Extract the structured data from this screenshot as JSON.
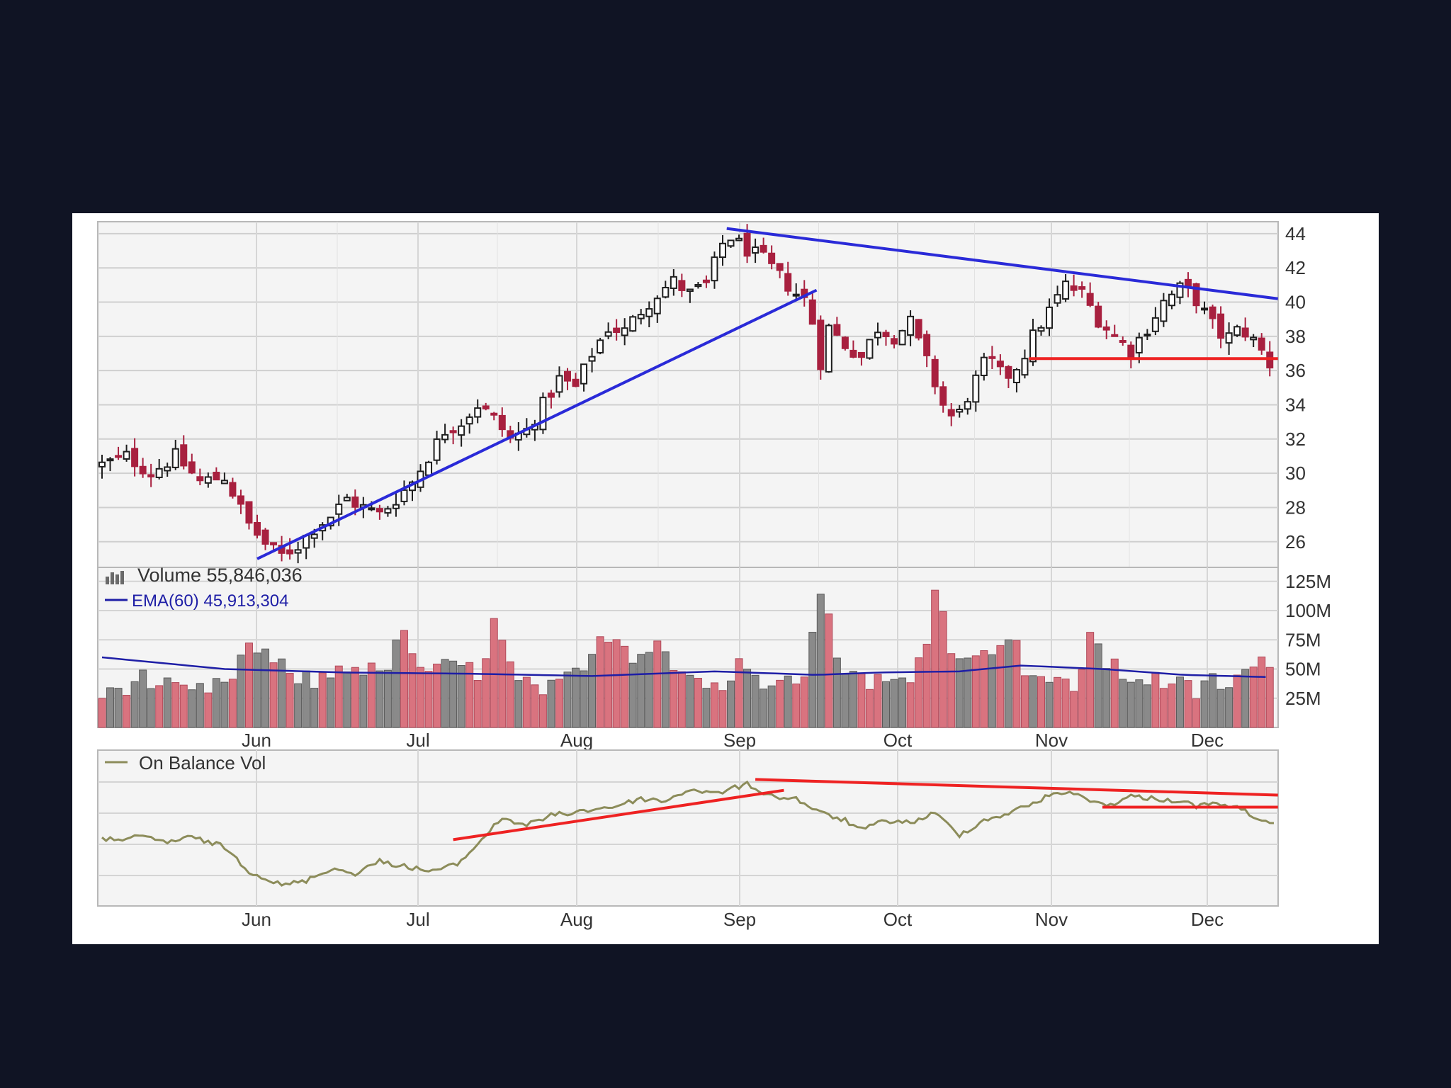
{
  "chart_data": [
    {
      "type": "candlestick",
      "title": "",
      "months": [
        "Jun",
        "Jul",
        "Aug",
        "Sep",
        "Oct",
        "Nov",
        "Dec"
      ],
      "ytick_labels": [
        "44",
        "42",
        "40",
        "38",
        "36",
        "34",
        "32",
        "30",
        "28",
        "26"
      ],
      "ylim": [
        24.5,
        44.7
      ],
      "y_axis_position": "right",
      "grid": true,
      "candle_colors": {
        "up": "#1e1e1e",
        "down": "#a8203f"
      },
      "close_path": [
        [
          0,
          30.5
        ],
        [
          6,
          31.0
        ],
        [
          12,
          30.0
        ],
        [
          18,
          31.0
        ],
        [
          24,
          29.5
        ],
        [
          30,
          29.8
        ],
        [
          36,
          27.0
        ],
        [
          41,
          25.6
        ],
        [
          44,
          25.2
        ],
        [
          48,
          25.8
        ],
        [
          52,
          26.8
        ],
        [
          56,
          27.5
        ],
        [
          60,
          28.5
        ],
        [
          64,
          28.0
        ],
        [
          68,
          27.6
        ],
        [
          72,
          28.5
        ],
        [
          76,
          29.5
        ],
        [
          80,
          31.0
        ],
        [
          84,
          32.5
        ],
        [
          88,
          33.0
        ],
        [
          92,
          34.0
        ],
        [
          96,
          33.2
        ],
        [
          100,
          32.0
        ],
        [
          104,
          32.5
        ],
        [
          108,
          34.0
        ],
        [
          112,
          35.5
        ],
        [
          116,
          35.0
        ],
        [
          120,
          37.0
        ],
        [
          124,
          38.5
        ],
        [
          128,
          38.3
        ],
        [
          132,
          39.5
        ],
        [
          136,
          40.5
        ],
        [
          140,
          41.2
        ],
        [
          144,
          40.5
        ],
        [
          148,
          41.0
        ],
        [
          153,
          44.0
        ],
        [
          157,
          43.2
        ],
        [
          162,
          42.5
        ],
        [
          166,
          41.5
        ],
        [
          170,
          40.5
        ],
        [
          173,
          40.0
        ],
        [
          176,
          36.5
        ],
        [
          178,
          38.5
        ],
        [
          182,
          37.5
        ],
        [
          186,
          36.8
        ],
        [
          190,
          38.5
        ],
        [
          194,
          38.0
        ],
        [
          198,
          38.8
        ],
        [
          202,
          36.5
        ],
        [
          206,
          34.0
        ],
        [
          209,
          33.0
        ],
        [
          213,
          35.0
        ],
        [
          217,
          36.8
        ],
        [
          221,
          35.5
        ],
        [
          225,
          36.5
        ],
        [
          228,
          38.0
        ],
        [
          232,
          39.5
        ],
        [
          236,
          41.0
        ],
        [
          240,
          40.5
        ],
        [
          244,
          39.0
        ],
        [
          248,
          38.0
        ],
        [
          252,
          37.2
        ],
        [
          256,
          38.5
        ],
        [
          260,
          40.0
        ],
        [
          264,
          40.8
        ],
        [
          267,
          40.5
        ],
        [
          271,
          39.0
        ],
        [
          275,
          37.8
        ],
        [
          279,
          38.5
        ],
        [
          283,
          37.5
        ],
        [
          287,
          36.0
        ]
      ],
      "annotations": [
        {
          "color": "#2a2ad8",
          "from": [
            38,
            25.0
          ],
          "to": [
            175,
            40.7
          ]
        },
        {
          "color": "#2a2ad8",
          "from": [
            153,
            44.3
          ],
          "to": [
            288,
            40.2
          ]
        },
        {
          "color": "#ee2222",
          "from": [
            227,
            36.7
          ],
          "to": [
            288,
            36.7
          ]
        }
      ]
    },
    {
      "type": "bar",
      "legend": {
        "volume": "Volume 55,846,036",
        "ema": "EMA(60) 45,913,304"
      },
      "ytick_labels": [
        "125M",
        "100M",
        "75M",
        "50M",
        "25M"
      ],
      "ylim": [
        0,
        137
      ],
      "bar_colors": {
        "up": "#8a8a8a",
        "down": "#d9737f"
      },
      "ema_color": "#1e1ea6",
      "volume_path": [
        [
          0,
          28
        ],
        [
          10,
          42
        ],
        [
          20,
          28
        ],
        [
          30,
          35
        ],
        [
          36,
          70
        ],
        [
          44,
          50
        ],
        [
          52,
          38
        ],
        [
          60,
          55
        ],
        [
          68,
          45
        ],
        [
          74,
          78
        ],
        [
          80,
          42
        ],
        [
          86,
          56
        ],
        [
          92,
          45
        ],
        [
          96,
          88
        ],
        [
          102,
          36
        ],
        [
          110,
          32
        ],
        [
          118,
          48
        ],
        [
          124,
          82
        ],
        [
          130,
          62
        ],
        [
          136,
          76
        ],
        [
          142,
          48
        ],
        [
          148,
          38
        ],
        [
          152,
          35
        ],
        [
          156,
          52
        ],
        [
          162,
          40
        ],
        [
          168,
          52
        ],
        [
          172,
          40
        ],
        [
          176,
          120
        ],
        [
          180,
          60
        ],
        [
          186,
          42
        ],
        [
          192,
          38
        ],
        [
          198,
          38
        ],
        [
          202,
          80
        ],
        [
          204,
          118
        ],
        [
          208,
          72
        ],
        [
          214,
          55
        ],
        [
          218,
          70
        ],
        [
          222,
          82
        ],
        [
          226,
          52
        ],
        [
          232,
          40
        ],
        [
          238,
          30
        ],
        [
          242,
          82
        ],
        [
          246,
          55
        ],
        [
          250,
          45
        ],
        [
          256,
          42
        ],
        [
          262,
          38
        ],
        [
          268,
          30
        ],
        [
          272,
          40
        ],
        [
          276,
          35
        ],
        [
          280,
          48
        ],
        [
          286,
          55
        ]
      ],
      "ema_path": [
        [
          0,
          60
        ],
        [
          30,
          50
        ],
        [
          60,
          47
        ],
        [
          90,
          46
        ],
        [
          120,
          44
        ],
        [
          150,
          48
        ],
        [
          175,
          45
        ],
        [
          190,
          47
        ],
        [
          210,
          48
        ],
        [
          225,
          53
        ],
        [
          245,
          50
        ],
        [
          265,
          45
        ],
        [
          287,
          43
        ]
      ]
    },
    {
      "type": "line",
      "legend": "On Balance Vol",
      "line_color": "#8c8c5a",
      "ylim": [
        0,
        100
      ],
      "values_path": [
        [
          0,
          48
        ],
        [
          10,
          50
        ],
        [
          16,
          46
        ],
        [
          22,
          50
        ],
        [
          30,
          42
        ],
        [
          36,
          22
        ],
        [
          44,
          10
        ],
        [
          50,
          14
        ],
        [
          56,
          24
        ],
        [
          62,
          20
        ],
        [
          68,
          30
        ],
        [
          74,
          26
        ],
        [
          80,
          22
        ],
        [
          84,
          24
        ],
        [
          88,
          30
        ],
        [
          94,
          52
        ],
        [
          98,
          66
        ],
        [
          104,
          60
        ],
        [
          110,
          68
        ],
        [
          118,
          72
        ],
        [
          126,
          76
        ],
        [
          132,
          82
        ],
        [
          138,
          80
        ],
        [
          144,
          90
        ],
        [
          150,
          86
        ],
        [
          158,
          94
        ],
        [
          164,
          84
        ],
        [
          170,
          82
        ],
        [
          176,
          70
        ],
        [
          182,
          64
        ],
        [
          186,
          56
        ],
        [
          192,
          64
        ],
        [
          198,
          62
        ],
        [
          204,
          70
        ],
        [
          210,
          52
        ],
        [
          216,
          64
        ],
        [
          222,
          70
        ],
        [
          228,
          78
        ],
        [
          234,
          88
        ],
        [
          240,
          84
        ],
        [
          246,
          76
        ],
        [
          252,
          84
        ],
        [
          258,
          82
        ],
        [
          264,
          80
        ],
        [
          268,
          76
        ],
        [
          274,
          78
        ],
        [
          280,
          72
        ],
        [
          286,
          60
        ]
      ],
      "annotations": [
        {
          "color": "#ee2222",
          "from": [
            86,
            48
          ],
          "to": [
            167,
            89
          ]
        },
        {
          "color": "#ee2222",
          "from": [
            160,
            98
          ],
          "to": [
            288,
            85
          ]
        },
        {
          "color": "#ee2222",
          "from": [
            245,
            75
          ],
          "to": [
            288,
            75
          ]
        }
      ]
    }
  ]
}
